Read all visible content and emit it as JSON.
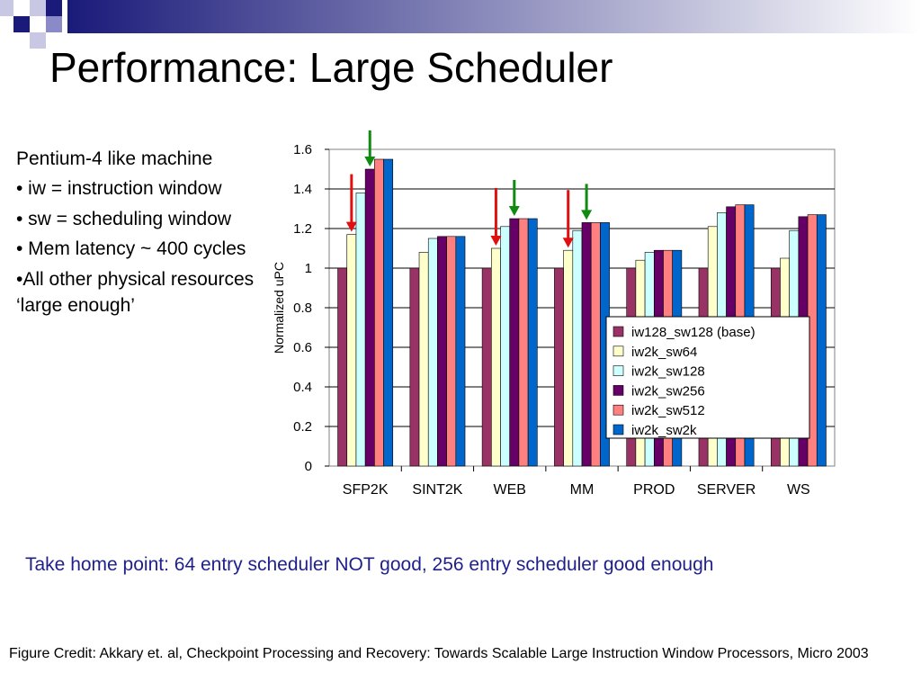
{
  "slide": {
    "title": "Performance: Large Scheduler",
    "bullets": [
      "Pentium-4 like machine",
      "• iw = instruction window",
      "• sw = scheduling window",
      "• Mem latency ~ 400 cycles",
      "•All other physical resources ‘large enough’"
    ],
    "take_home": "Take home point: 64 entry scheduler NOT good, 256 entry scheduler good enough",
    "credit": "Figure Credit: Akkary et. al, Checkpoint Processing and Recovery: Towards Scalable Large Instruction Window Processors, Micro 2003"
  },
  "colors": {
    "header_dark": "#1a1a7a",
    "header_mid": "#8a8ac8",
    "header_light": "#c8c8e4",
    "take_home_text": "#1f1f8c",
    "arrow_red": "#e01010",
    "arrow_green": "#108a10"
  },
  "chart_data": {
    "type": "bar",
    "ylabel": "Normalized uPC",
    "ylim": [
      0,
      1.6
    ],
    "yticks": [
      "0",
      "0.2",
      "0.4",
      "0.6",
      "0.8",
      "1",
      "1.2",
      "1.4",
      "1.6"
    ],
    "grid": true,
    "legend_position": "lower-right",
    "categories": [
      "SFP2K",
      "SINT2K",
      "WEB",
      "MM",
      "PROD",
      "SERVER",
      "WS"
    ],
    "series": [
      {
        "name": "iw128_sw128 (base)",
        "color": "#993366",
        "values": [
          1.0,
          1.0,
          1.0,
          1.0,
          1.0,
          1.0,
          1.0
        ]
      },
      {
        "name": "iw2k_sw64",
        "color": "#ffffcc",
        "values": [
          1.17,
          1.08,
          1.1,
          1.09,
          1.04,
          1.21,
          1.05
        ]
      },
      {
        "name": "iw2k_sw128",
        "color": "#ccffff",
        "values": [
          1.38,
          1.15,
          1.21,
          1.19,
          1.08,
          1.28,
          1.19
        ]
      },
      {
        "name": "iw2k_sw256",
        "color": "#660066",
        "values": [
          1.5,
          1.16,
          1.25,
          1.23,
          1.09,
          1.31,
          1.26
        ]
      },
      {
        "name": "iw2k_sw512",
        "color": "#ff8080",
        "values": [
          1.55,
          1.16,
          1.25,
          1.23,
          1.09,
          1.32,
          1.27
        ]
      },
      {
        "name": "iw2k_sw2k",
        "color": "#0066cc",
        "values": [
          1.55,
          1.16,
          1.25,
          1.23,
          1.09,
          1.32,
          1.27
        ]
      }
    ],
    "annotations": {
      "red_arrows": [
        {
          "category": "SFP2K",
          "series": "iw2k_sw64"
        },
        {
          "category": "WEB",
          "series": "iw2k_sw64"
        },
        {
          "category": "MM",
          "series": "iw2k_sw64"
        }
      ],
      "green_arrows": [
        {
          "category": "SFP2K",
          "series": "iw2k_sw256"
        },
        {
          "category": "WEB",
          "series": "iw2k_sw256"
        },
        {
          "category": "MM",
          "series": "iw2k_sw256"
        }
      ]
    }
  }
}
